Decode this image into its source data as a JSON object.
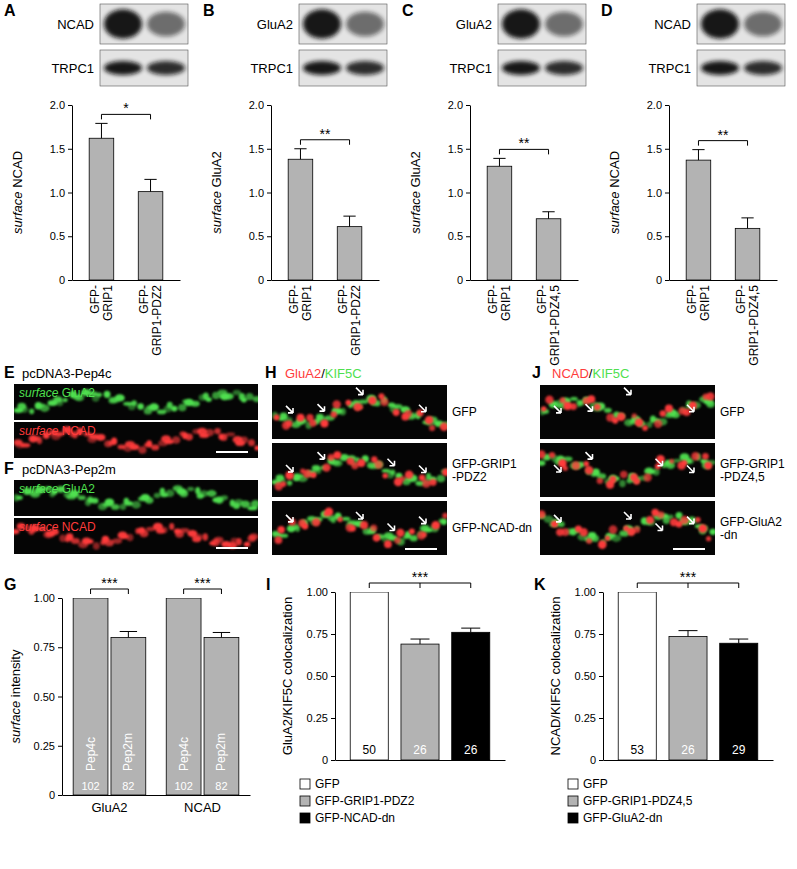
{
  "chart_data": [
    {
      "panel": "A",
      "type": "bar",
      "categories": [
        "GFP-GRIP1",
        "GFP-GRIP1-PDZ2"
      ],
      "values": [
        1.62,
        1.01
      ],
      "errors": [
        0.17,
        0.14
      ],
      "color": "#b3b3b3",
      "y_label": "surface NCAD",
      "ylim": [
        0,
        2
      ],
      "yticks": [
        0,
        0.5,
        {
          "value": 1,
          "label": "1.0"
        },
        1.5,
        {
          "value": 2,
          "label": "2.0"
        }
      ],
      "annotations": [
        {
          "text": "*",
          "from": 0,
          "to": [
            1
          ]
        }
      ]
    },
    {
      "panel": "B",
      "type": "bar",
      "categories": [
        "GFP-GRIP1",
        "GFP-GRIP1-PDZ2"
      ],
      "values": [
        1.38,
        0.61
      ],
      "errors": [
        0.12,
        0.12
      ],
      "color": "#b3b3b3",
      "y_label": "surface GluA2",
      "ylim": [
        0,
        2
      ],
      "yticks": [
        0,
        0.5,
        {
          "value": 1,
          "label": "1.0"
        },
        1.5,
        {
          "value": 2,
          "label": "2.0"
        }
      ],
      "annotations": [
        {
          "text": "**",
          "from": 0,
          "to": [
            1
          ]
        }
      ]
    },
    {
      "panel": "C",
      "type": "bar",
      "categories": [
        "GFP-GRIP1",
        "GFP-GRIP1-PDZ4,5"
      ],
      "values": [
        1.3,
        0.7
      ],
      "errors": [
        0.09,
        0.08
      ],
      "color": "#b3b3b3",
      "y_label": "surface GluA2",
      "ylim": [
        0,
        2
      ],
      "yticks": [
        0,
        0.5,
        {
          "value": 1,
          "label": "1.0"
        },
        1.5,
        {
          "value": 2,
          "label": "2.0"
        }
      ],
      "annotations": [
        {
          "text": "**",
          "from": 0,
          "to": [
            1
          ]
        }
      ]
    },
    {
      "panel": "D",
      "type": "bar",
      "categories": [
        "GFP-GRIP1",
        "GFP-GRIP1-PDZ4,5"
      ],
      "values": [
        1.37,
        0.59
      ],
      "errors": [
        0.12,
        0.12
      ],
      "color": "#b3b3b3",
      "y_label": "surface NCAD",
      "ylim": [
        0,
        2
      ],
      "yticks": [
        0,
        0.5,
        {
          "value": 1,
          "label": "1.0"
        },
        1.5,
        {
          "value": 2,
          "label": "2.0"
        }
      ],
      "annotations": [
        {
          "text": "**",
          "from": 0,
          "to": [
            1
          ]
        }
      ]
    },
    {
      "panel": "G",
      "type": "bar",
      "categories": [
        "GluA2",
        "NCAD"
      ],
      "series": [
        {
          "name": "Pep4c",
          "color": "#b3b3b3",
          "values": [
            1,
            1
          ],
          "n": [
            102,
            102
          ]
        },
        {
          "name": "Pep2m",
          "color": "#b3b3b3",
          "values": [
            0.8,
            0.8
          ],
          "errors": [
            0.03,
            0.025
          ],
          "n": [
            82,
            82
          ]
        }
      ],
      "y_label": "surface intensity",
      "ylim": [
        0,
        1
      ],
      "yticks": [
        0,
        0.25,
        {
          "value": 0.5,
          "label": "0.50"
        },
        0.75,
        {
          "value": 1,
          "label": "1.00"
        }
      ],
      "annotations": [
        {
          "text": "***",
          "category": 0
        },
        {
          "text": "***",
          "category": 1
        }
      ]
    },
    {
      "panel": "I",
      "type": "bar",
      "categories": [
        "GFP",
        "GFP-GRIP1-PDZ2",
        "GFP-NCAD-dn"
      ],
      "values": [
        1,
        0.69,
        0.76
      ],
      "errors": [
        null,
        0.03,
        0.025
      ],
      "colors": [
        "#ffffff",
        "#b3b3b3",
        "#000000"
      ],
      "n": [
        50,
        26,
        26
      ],
      "y_label": "GluA2/KIF5C colocalization",
      "ylim": [
        0,
        1
      ],
      "yticks": [
        0,
        0.25,
        {
          "value": 0.5,
          "label": "0.50"
        },
        0.75,
        {
          "value": 1,
          "label": "1.00"
        }
      ],
      "tick_labels": "y",
      "legend": "bottom",
      "annotations": [
        {
          "text": "***",
          "from": 0,
          "to": [
            1,
            2
          ]
        }
      ]
    },
    {
      "panel": "K",
      "type": "bar",
      "categories": [
        "GFP",
        "GFP-GRIP1-PDZ4,5",
        "GFP-GluA2-dn"
      ],
      "values": [
        1,
        0.735,
        0.695
      ],
      "errors": [
        null,
        0.035,
        0.025
      ],
      "colors": [
        "#ffffff",
        "#b3b3b3",
        "#000000"
      ],
      "n": [
        53,
        26,
        29
      ],
      "y_label": "NCAD/KIF5C colocalization",
      "ylim": [
        0,
        1
      ],
      "yticks": [
        0,
        0.25,
        {
          "value": 0.5,
          "label": "0.50"
        },
        0.75,
        {
          "value": 1,
          "label": "1.00"
        }
      ],
      "tick_labels": "y",
      "legend": "bottom",
      "annotations": [
        {
          "text": "***",
          "from": 0,
          "to": [
            1,
            2
          ]
        }
      ]
    }
  ],
  "blots": [
    {
      "bands": [
        "NCAD",
        "TRPC1"
      ]
    },
    {
      "bands": [
        "GluA2",
        "TRPC1"
      ]
    },
    {
      "bands": [
        "GluA2",
        "TRPC1"
      ]
    },
    {
      "bands": [
        "NCAD",
        "TRPC1"
      ]
    }
  ],
  "micrographs": [
    {
      "panel": "E",
      "title": "pcDNA3-Pep4c",
      "strips": [
        {
          "label": "surface GluA2",
          "color": "#4fe04f"
        },
        {
          "label": "surface NCAD",
          "color": "#ff3b3b"
        }
      ]
    },
    {
      "panel": "F",
      "title": "pcDNA3-Pep2m",
      "strips": [
        {
          "label": "surface GluA2",
          "color": "#4fe04f"
        },
        {
          "label": "surface NCAD",
          "color": "#ff3b3b"
        }
      ]
    },
    {
      "panel": "H",
      "title": "GluA2/KIF5C",
      "colors": [
        "#ff3b3b",
        "#4fe04f"
      ],
      "strips": [
        {
          "label": "GFP"
        },
        {
          "label": "GFP-GRIP1-PDZ2"
        },
        {
          "label": "GFP-NCAD-dn"
        }
      ]
    },
    {
      "panel": "J",
      "title": "NCAD/KIF5C",
      "colors": [
        "#ff3b3b",
        "#4fe04f"
      ],
      "strips": [
        {
          "label": "GFP"
        },
        {
          "label": "GFP-GRIP1-PDZ4,5"
        },
        {
          "label": "GFP-GluA2-dn"
        }
      ]
    }
  ]
}
